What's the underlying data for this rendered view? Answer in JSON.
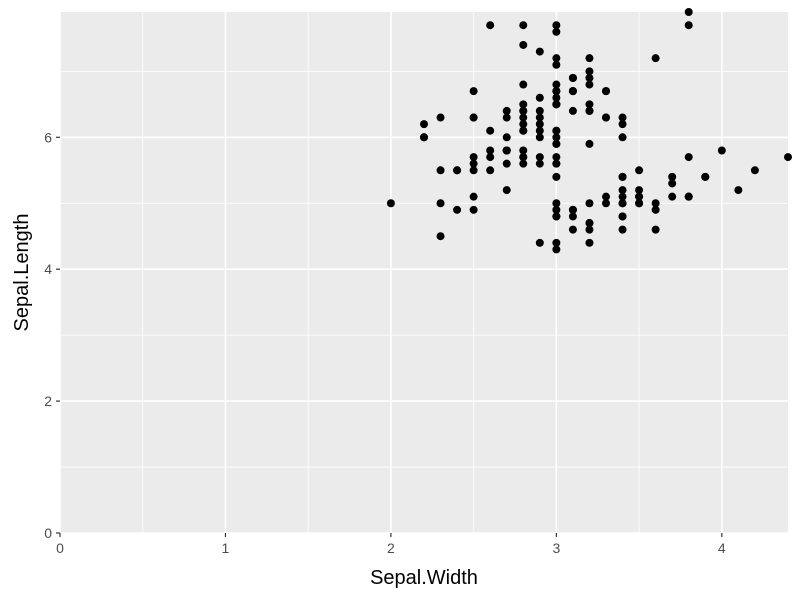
{
  "chart_data": {
    "type": "scatter",
    "xlabel": "Sepal.Width",
    "ylabel": "Sepal.Length",
    "xlim": [
      0,
      4.4
    ],
    "ylim": [
      0,
      7.9
    ],
    "xticks": [
      0,
      1,
      2,
      3,
      4
    ],
    "yticks": [
      0,
      2,
      4,
      6
    ],
    "grid": true,
    "colors": {
      "panel": "#EBEBEB",
      "grid": "#FFFFFF",
      "point": "#000000",
      "tick": "#333333"
    },
    "series": [
      {
        "points": [
          [
            3.5,
            5.1
          ],
          [
            3.0,
            4.9
          ],
          [
            3.2,
            4.7
          ],
          [
            3.1,
            4.6
          ],
          [
            3.6,
            5.0
          ],
          [
            3.9,
            5.4
          ],
          [
            3.4,
            4.6
          ],
          [
            3.4,
            5.0
          ],
          [
            2.9,
            4.4
          ],
          [
            3.1,
            4.9
          ],
          [
            3.7,
            5.4
          ],
          [
            3.4,
            4.8
          ],
          [
            3.0,
            4.8
          ],
          [
            3.0,
            4.3
          ],
          [
            4.0,
            5.8
          ],
          [
            4.4,
            5.7
          ],
          [
            3.9,
            5.4
          ],
          [
            3.5,
            5.1
          ],
          [
            3.8,
            5.7
          ],
          [
            3.8,
            5.1
          ],
          [
            3.4,
            5.4
          ],
          [
            3.7,
            5.1
          ],
          [
            3.6,
            4.6
          ],
          [
            3.3,
            5.1
          ],
          [
            3.4,
            4.8
          ],
          [
            3.0,
            5.0
          ],
          [
            3.4,
            5.0
          ],
          [
            3.5,
            5.2
          ],
          [
            3.4,
            5.2
          ],
          [
            3.2,
            4.7
          ],
          [
            3.1,
            4.8
          ],
          [
            3.4,
            5.4
          ],
          [
            4.1,
            5.2
          ],
          [
            4.2,
            5.5
          ],
          [
            3.1,
            4.9
          ],
          [
            3.2,
            5.0
          ],
          [
            3.5,
            5.5
          ],
          [
            3.6,
            4.9
          ],
          [
            3.0,
            4.4
          ],
          [
            3.4,
            5.1
          ],
          [
            3.5,
            5.0
          ],
          [
            2.3,
            4.5
          ],
          [
            3.2,
            4.4
          ],
          [
            3.5,
            5.0
          ],
          [
            3.8,
            5.1
          ],
          [
            3.0,
            4.8
          ],
          [
            3.8,
            5.1
          ],
          [
            3.2,
            4.6
          ],
          [
            3.7,
            5.3
          ],
          [
            3.3,
            5.0
          ],
          [
            3.2,
            7.0
          ],
          [
            3.2,
            6.4
          ],
          [
            3.1,
            6.9
          ],
          [
            2.3,
            5.5
          ],
          [
            2.8,
            6.5
          ],
          [
            2.8,
            5.7
          ],
          [
            3.3,
            6.3
          ],
          [
            2.4,
            4.9
          ],
          [
            2.9,
            6.6
          ],
          [
            2.7,
            5.2
          ],
          [
            2.0,
            5.0
          ],
          [
            3.0,
            5.9
          ],
          [
            2.2,
            6.0
          ],
          [
            2.9,
            6.1
          ],
          [
            2.9,
            5.6
          ],
          [
            3.1,
            6.7
          ],
          [
            3.0,
            5.6
          ],
          [
            2.7,
            5.8
          ],
          [
            2.2,
            6.2
          ],
          [
            2.5,
            5.6
          ],
          [
            3.2,
            5.9
          ],
          [
            2.8,
            6.1
          ],
          [
            2.5,
            6.3
          ],
          [
            2.8,
            6.1
          ],
          [
            2.9,
            6.4
          ],
          [
            3.0,
            6.6
          ],
          [
            2.8,
            6.8
          ],
          [
            3.0,
            6.7
          ],
          [
            2.9,
            6.0
          ],
          [
            2.6,
            5.7
          ],
          [
            2.4,
            5.5
          ],
          [
            2.4,
            5.5
          ],
          [
            2.7,
            5.8
          ],
          [
            2.7,
            6.0
          ],
          [
            3.0,
            5.4
          ],
          [
            3.4,
            6.0
          ],
          [
            3.1,
            6.7
          ],
          [
            2.3,
            6.3
          ],
          [
            3.0,
            5.6
          ],
          [
            2.5,
            5.5
          ],
          [
            2.6,
            5.5
          ],
          [
            3.0,
            6.1
          ],
          [
            2.6,
            5.8
          ],
          [
            2.3,
            5.0
          ],
          [
            2.7,
            5.6
          ],
          [
            3.0,
            5.7
          ],
          [
            2.9,
            5.7
          ],
          [
            2.9,
            6.2
          ],
          [
            2.5,
            5.1
          ],
          [
            2.8,
            5.7
          ],
          [
            3.3,
            6.3
          ],
          [
            2.7,
            5.8
          ],
          [
            3.0,
            7.1
          ],
          [
            2.9,
            6.3
          ],
          [
            3.0,
            6.5
          ],
          [
            3.0,
            7.6
          ],
          [
            2.5,
            4.9
          ],
          [
            2.9,
            7.3
          ],
          [
            2.5,
            6.7
          ],
          [
            3.6,
            7.2
          ],
          [
            3.2,
            6.5
          ],
          [
            2.7,
            6.4
          ],
          [
            3.0,
            6.8
          ],
          [
            2.5,
            5.7
          ],
          [
            2.8,
            5.8
          ],
          [
            3.2,
            6.4
          ],
          [
            3.0,
            6.5
          ],
          [
            3.8,
            7.7
          ],
          [
            2.6,
            7.7
          ],
          [
            2.2,
            6.0
          ],
          [
            3.2,
            6.9
          ],
          [
            2.8,
            5.6
          ],
          [
            2.8,
            7.7
          ],
          [
            2.7,
            6.3
          ],
          [
            3.3,
            6.7
          ],
          [
            3.2,
            7.2
          ],
          [
            2.8,
            6.2
          ],
          [
            3.0,
            6.1
          ],
          [
            2.8,
            6.4
          ],
          [
            3.0,
            7.2
          ],
          [
            2.8,
            7.4
          ],
          [
            3.8,
            7.9
          ],
          [
            2.8,
            6.4
          ],
          [
            2.8,
            6.3
          ],
          [
            2.6,
            6.1
          ],
          [
            3.0,
            7.7
          ],
          [
            3.4,
            6.3
          ],
          [
            3.1,
            6.4
          ],
          [
            3.0,
            6.0
          ],
          [
            3.1,
            6.9
          ],
          [
            3.1,
            6.7
          ],
          [
            3.1,
            6.9
          ],
          [
            2.7,
            5.8
          ],
          [
            3.2,
            6.8
          ],
          [
            3.3,
            6.7
          ],
          [
            3.0,
            6.7
          ],
          [
            2.5,
            6.3
          ],
          [
            3.0,
            6.5
          ],
          [
            3.4,
            6.2
          ],
          [
            3.0,
            5.9
          ]
        ]
      }
    ]
  }
}
